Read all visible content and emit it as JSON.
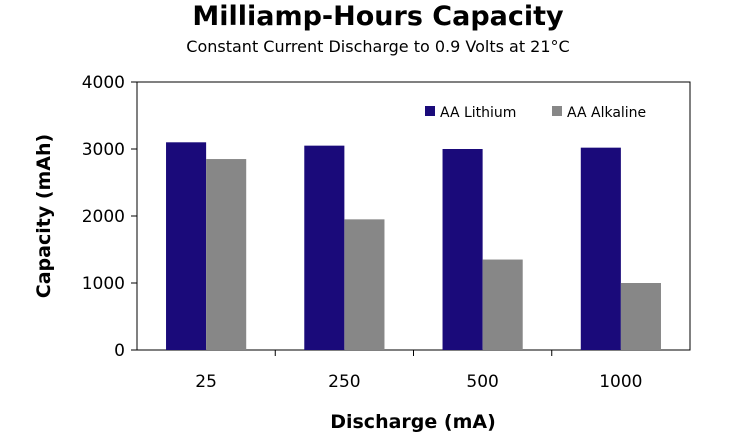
{
  "chart_data": {
    "type": "bar",
    "title": "Milliamp-Hours Capacity",
    "subtitle": "Constant Current Discharge to 0.9 Volts at 21°C",
    "xlabel": "Discharge (mA)",
    "ylabel": "Capacity (mAh)",
    "categories": [
      "25",
      "250",
      "500",
      "1000"
    ],
    "ylim": [
      0,
      4000
    ],
    "yticks": [
      "0",
      "1000",
      "2000",
      "3000",
      "4000"
    ],
    "series": [
      {
        "name": "AA Lithium",
        "color": "#1a0a7a",
        "values": [
          3100,
          3050,
          3000,
          3020
        ]
      },
      {
        "name": "AA Alkaline",
        "color": "#878787",
        "values": [
          2850,
          1950,
          1350,
          1000
        ]
      }
    ],
    "legend_position": "top-right",
    "grid": false
  }
}
